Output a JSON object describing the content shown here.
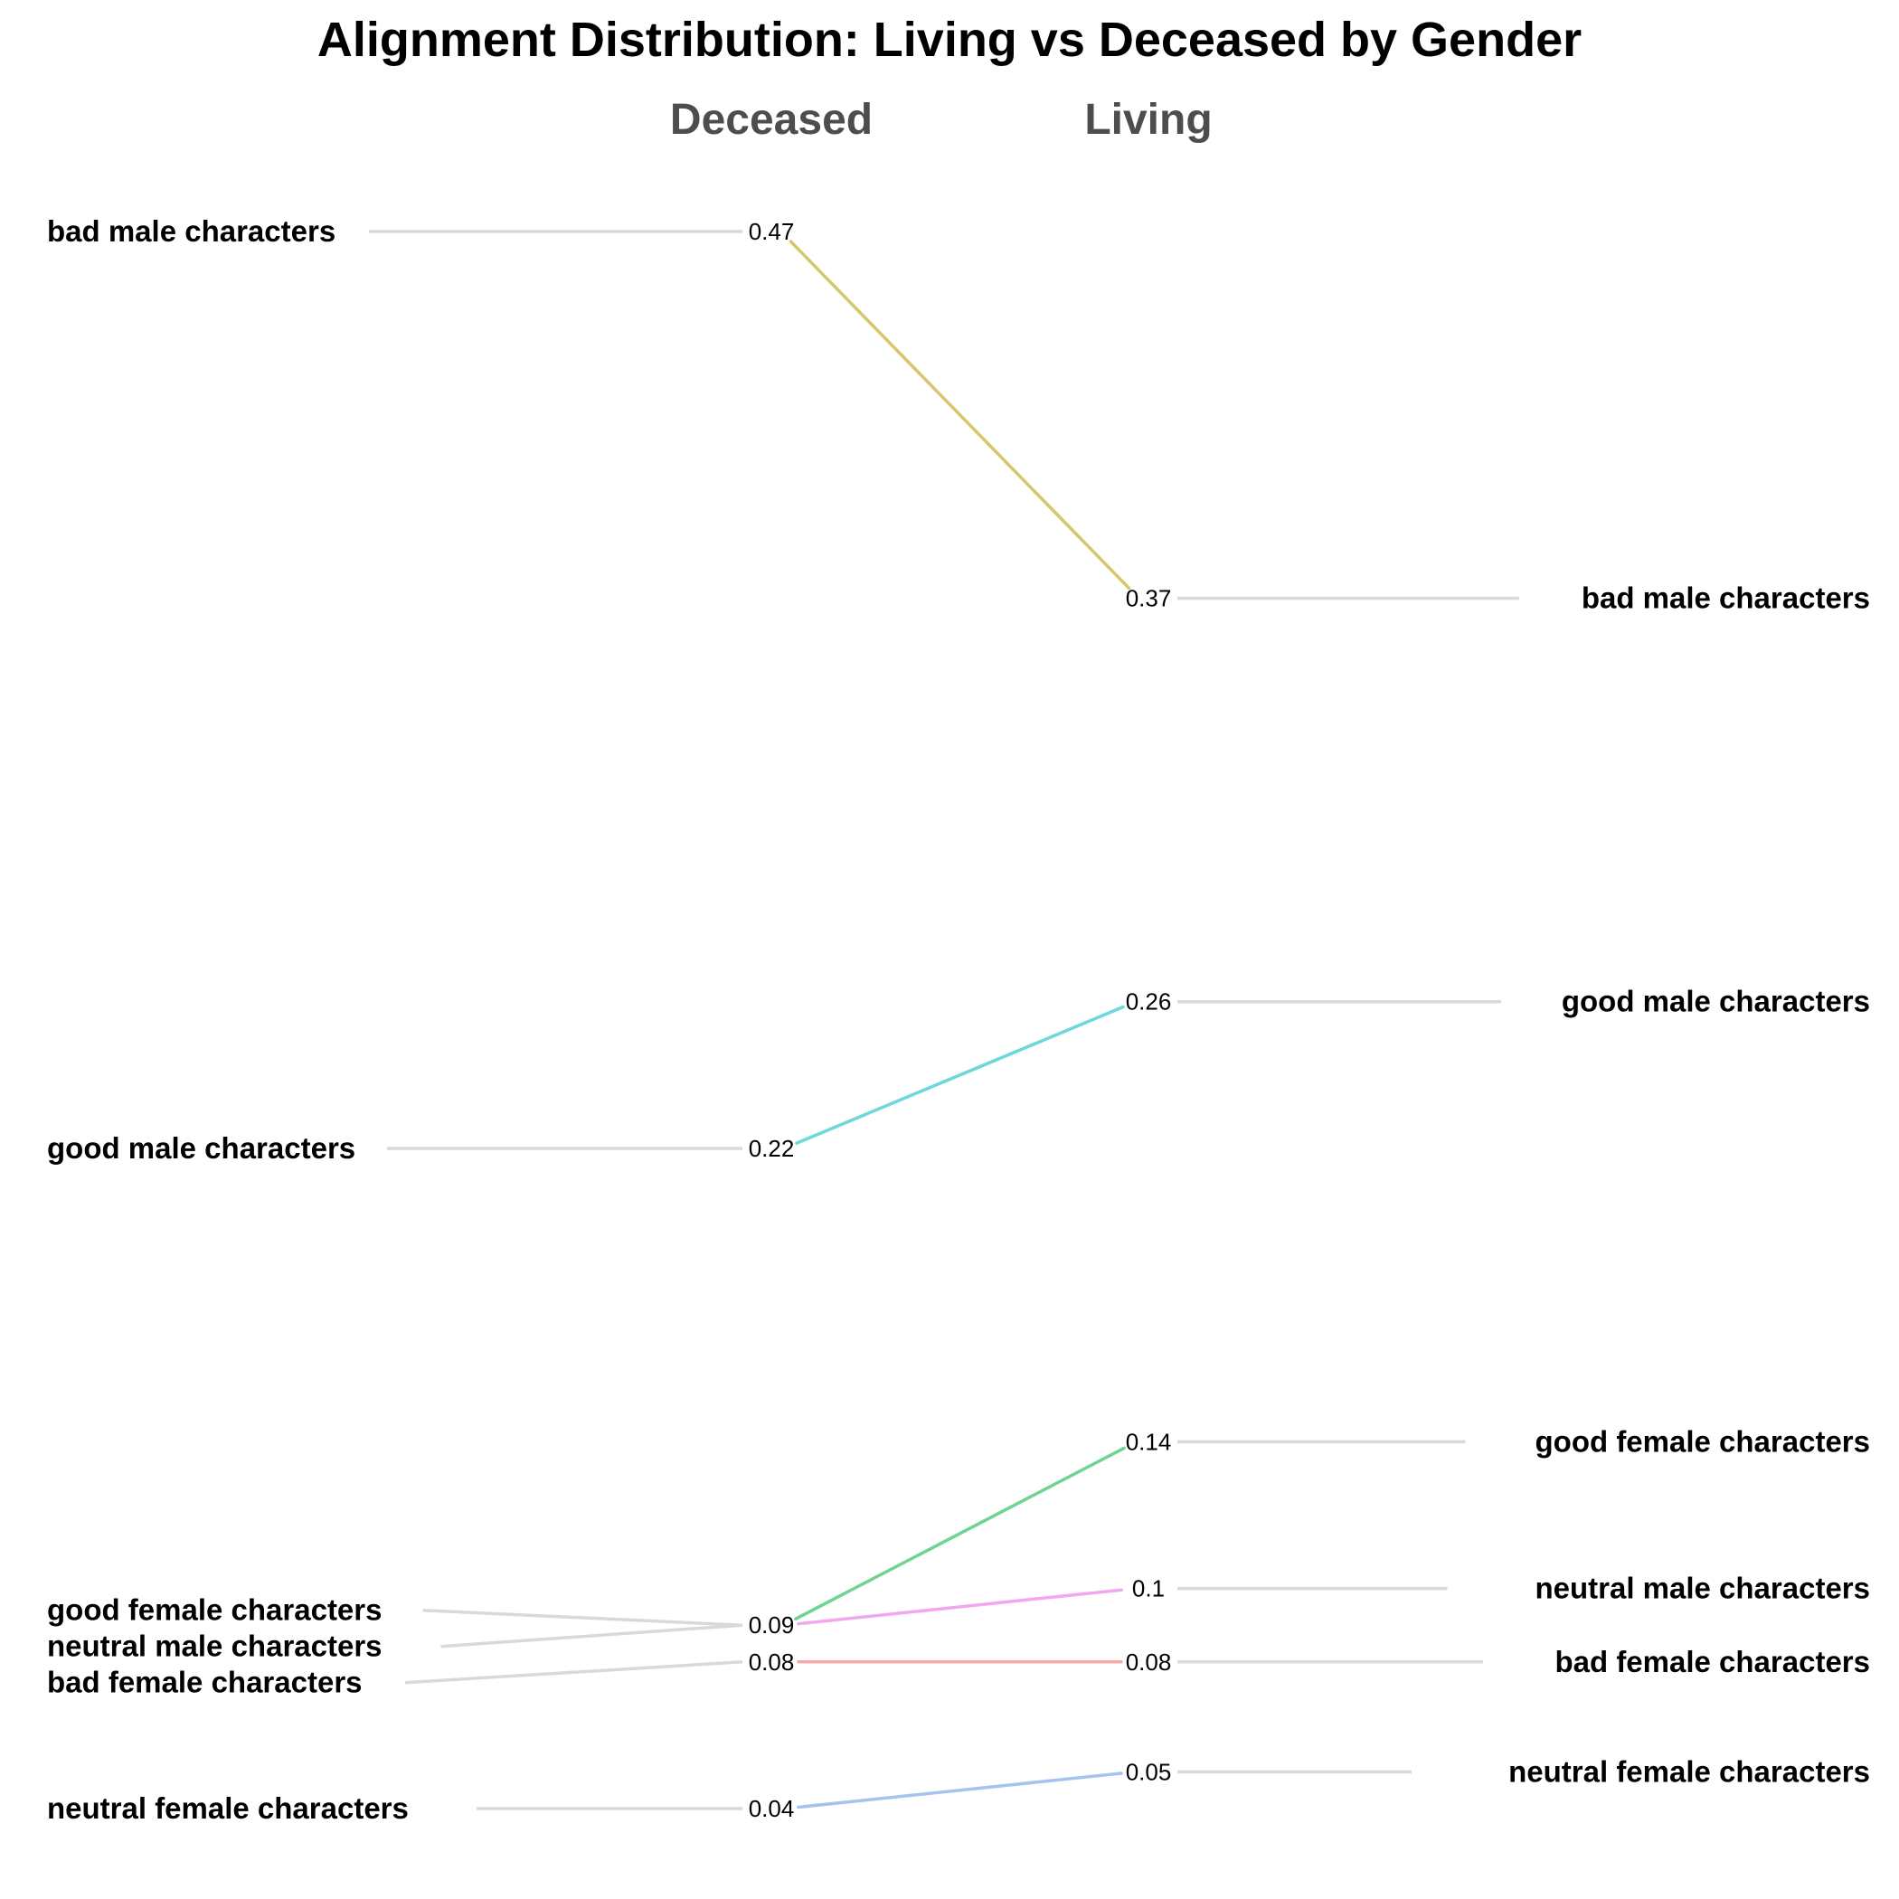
{
  "chart_data": {
    "type": "line",
    "title": "Alignment Distribution: Living vs Deceased by Gender",
    "columns": [
      "Deceased",
      "Living"
    ],
    "series": [
      {
        "name": "bad male characters",
        "values": [
          0.47,
          0.37
        ],
        "color": "#d4c76c"
      },
      {
        "name": "good male characters",
        "values": [
          0.22,
          0.26
        ],
        "color": "#6cd8dc"
      },
      {
        "name": "good female characters",
        "values": [
          0.09,
          0.14
        ],
        "color": "#6fd491"
      },
      {
        "name": "neutral male characters",
        "values": [
          0.09,
          0.1
        ],
        "color": "#f2a7ee"
      },
      {
        "name": "bad female characters",
        "values": [
          0.08,
          0.08
        ],
        "color": "#f2aaaa"
      },
      {
        "name": "neutral female characters",
        "values": [
          0.04,
          0.05
        ],
        "color": "#a4c4f0"
      }
    ],
    "value_labels": {
      "Deceased": [
        "0.47",
        "0.22",
        "0.09",
        "0.08",
        "0.04"
      ],
      "Living": [
        "0.37",
        "0.26",
        "0.14",
        "0.1",
        "0.08",
        "0.05"
      ]
    },
    "ylim": [
      0.04,
      0.47
    ],
    "grid": false,
    "legend": "none",
    "connector_color": "#d9d9d9"
  }
}
